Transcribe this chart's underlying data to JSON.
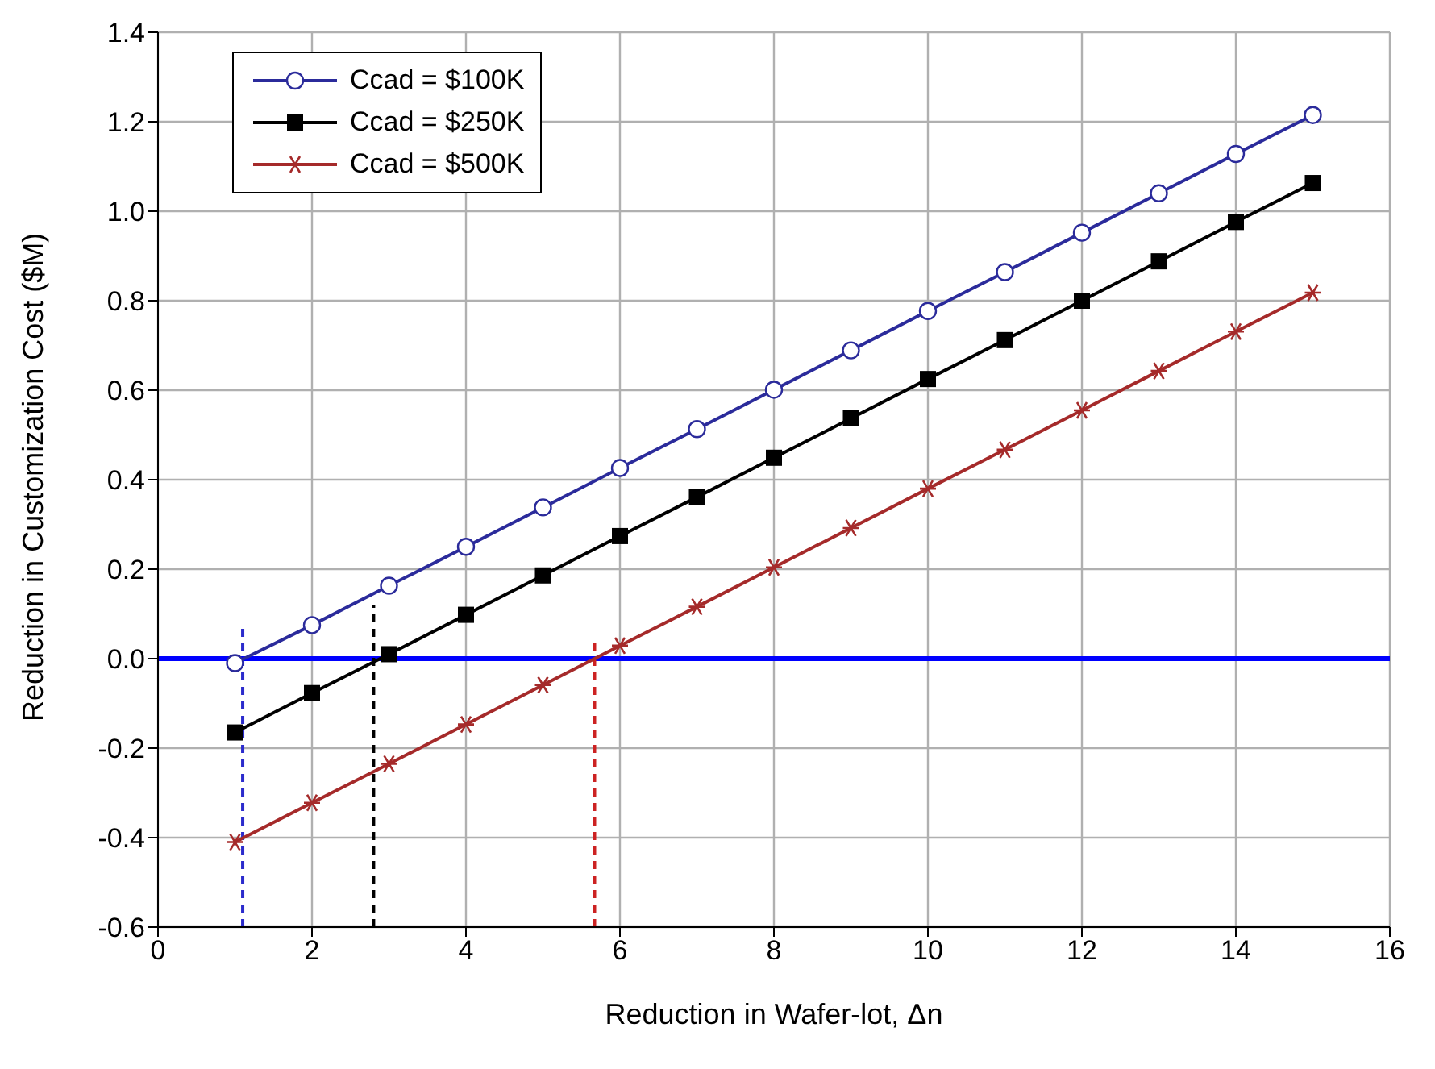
{
  "chart_data": {
    "type": "line",
    "xlabel": "Reduction in Wafer-lot, Δn",
    "ylabel": "Reduction in Customization Cost ($M)",
    "x": [
      1,
      2,
      3,
      4,
      5,
      6,
      7,
      8,
      9,
      10,
      11,
      12,
      13,
      14,
      15
    ],
    "series": [
      {
        "name": "Ccad = $100K",
        "color": "#2b2b9b",
        "marker": "circle",
        "values": [
          -0.01,
          0.075,
          0.163,
          0.25,
          0.338,
          0.426,
          0.513,
          0.601,
          0.689,
          0.777,
          0.864,
          0.952,
          1.04,
          1.128,
          1.215
        ]
      },
      {
        "name": "Ccad = $250K",
        "color": "#000000",
        "marker": "square",
        "values": [
          -0.165,
          -0.077,
          0.01,
          0.098,
          0.186,
          0.274,
          0.361,
          0.449,
          0.537,
          0.625,
          0.712,
          0.8,
          0.888,
          0.976,
          1.063
        ]
      },
      {
        "name": "Ccad = $500K",
        "color": "#a52a2a",
        "marker": "cross",
        "values": [
          -0.41,
          -0.322,
          -0.235,
          -0.147,
          -0.059,
          0.029,
          0.116,
          0.204,
          0.292,
          0.38,
          0.467,
          0.555,
          0.643,
          0.731,
          0.818
        ]
      }
    ],
    "xlim": [
      0,
      16
    ],
    "xticks": [
      0,
      2,
      4,
      6,
      8,
      10,
      12,
      14,
      16
    ],
    "ylim": [
      -0.6,
      1.4
    ],
    "yticks": [
      {
        "value": -0.6,
        "label": "-0.6"
      },
      {
        "value": -0.4,
        "label": "-0.4"
      },
      {
        "value": -0.2,
        "label": "-0.2"
      },
      {
        "value": 0,
        "label": "0.0"
      },
      {
        "value": 0.2,
        "label": "0.2"
      },
      {
        "value": 0.4,
        "label": "0.4"
      },
      {
        "value": 0.6,
        "label": "0.6"
      },
      {
        "value": 0.8,
        "label": "0.8"
      },
      {
        "value": 1,
        "label": "1.0"
      },
      {
        "value": 1.2,
        "label": "1.2"
      },
      {
        "value": 1.4,
        "label": "1.4"
      }
    ],
    "ref_lines": [
      {
        "axis": "y",
        "value": 0,
        "color": "#0000ff",
        "line_style": "solid"
      },
      {
        "axis": "x",
        "value": 1.1,
        "color": "#2b2bcc",
        "line_style": "dashed"
      },
      {
        "axis": "x",
        "value": 2.8,
        "color": "#000000",
        "line_style": "dashed"
      },
      {
        "axis": "x",
        "value": 5.67,
        "color": "#cc2222",
        "line_style": "dashed"
      }
    ],
    "grid": true,
    "legend": "top left",
    "line_style": "solid"
  }
}
